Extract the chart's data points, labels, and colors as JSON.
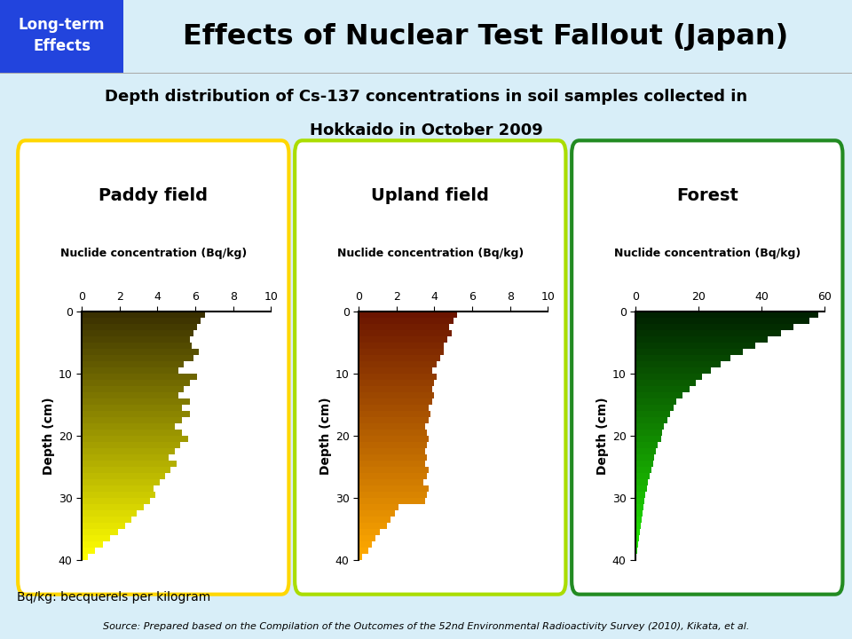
{
  "title": "Effects of Nuclear Test Fallout (Japan)",
  "subtitle_line1": "Depth distribution of Cs-137 concentrations in soil samples collected in",
  "subtitle_line2": "Hokkaido in October 2009",
  "header_label": "Long-term\nEffects",
  "header_bg": "#2244DD",
  "bg_color": "#D8EEF8",
  "header_bg_color": "#C8E8F5",
  "footnote1": "Bq/kg: becquerels per kilogram",
  "footnote2": "Source: Prepared based on the Compilation of the Outcomes of the 52nd Environmental Radioactivity Survey (2010), Kikata, et al.",
  "panels": [
    {
      "title": "Paddy field",
      "xlabel": "Nuclide concentration (Bq/kg)",
      "ylabel": "Depth (cm)",
      "xlim": [
        0,
        10
      ],
      "xticks": [
        0,
        2,
        4,
        6,
        8,
        10
      ],
      "ylim": [
        0,
        40
      ],
      "border_color": "#FFD700",
      "color_start": "#3A3000",
      "color_end": "#FFFF00",
      "depths": [
        0,
        1,
        2,
        3,
        4,
        5,
        6,
        7,
        8,
        9,
        10,
        11,
        12,
        13,
        14,
        15,
        16,
        17,
        18,
        19,
        20,
        21,
        22,
        23,
        24,
        25,
        26,
        27,
        28,
        29,
        30,
        31,
        32,
        33,
        34,
        35,
        36,
        37,
        38,
        39
      ],
      "values": [
        6.5,
        6.3,
        6.1,
        5.9,
        5.7,
        5.8,
        6.2,
        5.9,
        5.4,
        5.1,
        6.1,
        5.7,
        5.4,
        5.1,
        5.7,
        5.3,
        5.7,
        5.3,
        4.9,
        5.3,
        5.6,
        5.2,
        4.9,
        4.6,
        5.0,
        4.7,
        4.4,
        4.1,
        3.8,
        3.9,
        3.6,
        3.3,
        2.9,
        2.6,
        2.3,
        1.9,
        1.5,
        1.1,
        0.7,
        0.3
      ]
    },
    {
      "title": "Upland field",
      "xlabel": "Nuclide concentration (Bq/kg)",
      "ylabel": "Depth (cm)",
      "xlim": [
        0,
        10
      ],
      "xticks": [
        0,
        2,
        4,
        6,
        8,
        10
      ],
      "ylim": [
        0,
        40
      ],
      "border_color": "#AADD00",
      "color_start": "#6B1500",
      "color_end": "#FFAA00",
      "depths": [
        0,
        1,
        2,
        3,
        4,
        5,
        6,
        7,
        8,
        9,
        10,
        11,
        12,
        13,
        14,
        15,
        16,
        17,
        18,
        19,
        20,
        21,
        22,
        23,
        24,
        25,
        26,
        27,
        28,
        29,
        30,
        31,
        32,
        33,
        34,
        35,
        36,
        37,
        38,
        39
      ],
      "values": [
        5.2,
        5.0,
        4.8,
        4.9,
        4.7,
        4.5,
        4.5,
        4.3,
        4.1,
        3.9,
        4.1,
        4.0,
        3.9,
        4.0,
        3.9,
        3.7,
        3.8,
        3.7,
        3.5,
        3.6,
        3.7,
        3.6,
        3.5,
        3.6,
        3.5,
        3.7,
        3.6,
        3.4,
        3.7,
        3.6,
        3.5,
        2.1,
        1.9,
        1.7,
        1.5,
        1.1,
        0.9,
        0.7,
        0.5,
        0.2
      ]
    },
    {
      "title": "Forest",
      "xlabel": "Nuclide concentration (Bq/kg)",
      "ylabel": "Depth (cm)",
      "xlim": [
        0,
        60
      ],
      "xticks": [
        0,
        20,
        40,
        60
      ],
      "ylim": [
        0,
        40
      ],
      "border_color": "#228B22",
      "color_start": "#002200",
      "color_end": "#22EE00",
      "depths": [
        0,
        1,
        2,
        3,
        4,
        5,
        6,
        7,
        8,
        9,
        10,
        11,
        12,
        13,
        14,
        15,
        16,
        17,
        18,
        19,
        20,
        21,
        22,
        23,
        24,
        25,
        26,
        27,
        28,
        29,
        30,
        31,
        32,
        33,
        34,
        35,
        36,
        37,
        38,
        39
      ],
      "values": [
        58,
        55,
        50,
        46,
        42,
        38,
        34,
        30,
        27,
        24,
        21,
        19,
        17,
        15,
        13,
        12,
        11,
        10,
        9,
        8.5,
        8,
        7,
        6.5,
        6,
        5.5,
        5,
        4.5,
        4,
        3.5,
        3,
        2.7,
        2.4,
        2.1,
        1.9,
        1.6,
        1.3,
        1.1,
        0.8,
        0.5,
        0.2
      ]
    }
  ]
}
